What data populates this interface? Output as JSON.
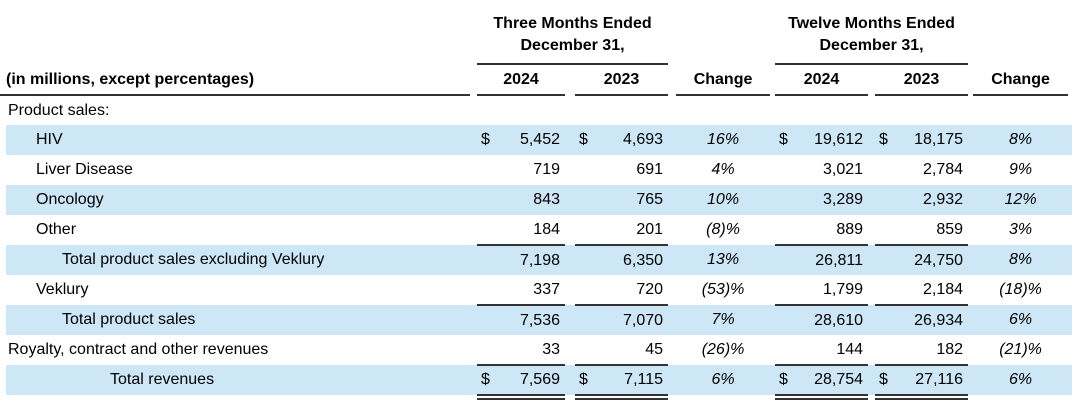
{
  "colors": {
    "row_highlight": "#cde7f7",
    "rule": "#333333",
    "text": "#000000",
    "background": "#ffffff"
  },
  "table": {
    "units_note": "(in millions, except percentages)",
    "currency_symbol": "$",
    "groups": [
      {
        "line1": "Three Months Ended",
        "line2": "December 31,"
      },
      {
        "line1": "Twelve Months Ended",
        "line2": "December 31,"
      }
    ],
    "col_headers": [
      "2024",
      "2023",
      "Change",
      "2024",
      "2023",
      "Change"
    ],
    "rows": [
      {
        "label": "Product sales:",
        "indent": 0,
        "shaded": false,
        "dollar": false,
        "values": null,
        "rule_below": false,
        "double_rule_below": false
      },
      {
        "label": "HIV",
        "indent": 1,
        "shaded": true,
        "dollar": true,
        "values": [
          "5,452",
          "4,693",
          "16%",
          "19,612",
          "18,175",
          "8%"
        ],
        "rule_below": false,
        "double_rule_below": false
      },
      {
        "label": "Liver Disease",
        "indent": 1,
        "shaded": false,
        "dollar": false,
        "values": [
          "719",
          "691",
          "4%",
          "3,021",
          "2,784",
          "9%"
        ],
        "rule_below": false,
        "double_rule_below": false
      },
      {
        "label": "Oncology",
        "indent": 1,
        "shaded": true,
        "dollar": false,
        "values": [
          "843",
          "765",
          "10%",
          "3,289",
          "2,932",
          "12%"
        ],
        "rule_below": false,
        "double_rule_below": false
      },
      {
        "label": "Other",
        "indent": 1,
        "shaded": false,
        "dollar": false,
        "values": [
          "184",
          "201",
          "(8)%",
          "889",
          "859",
          "3%"
        ],
        "rule_below": true,
        "double_rule_below": false
      },
      {
        "label": "Total product sales excluding Veklury",
        "indent": 2,
        "shaded": true,
        "dollar": false,
        "values": [
          "7,198",
          "6,350",
          "13%",
          "26,811",
          "24,750",
          "8%"
        ],
        "rule_below": false,
        "double_rule_below": false
      },
      {
        "label": "Veklury",
        "indent": 1,
        "shaded": false,
        "dollar": false,
        "values": [
          "337",
          "720",
          "(53)%",
          "1,799",
          "2,184",
          "(18)%"
        ],
        "rule_below": true,
        "double_rule_below": false
      },
      {
        "label": "Total product sales",
        "indent": 2,
        "shaded": true,
        "dollar": false,
        "values": [
          "7,536",
          "7,070",
          "7%",
          "28,610",
          "26,934",
          "6%"
        ],
        "rule_below": false,
        "double_rule_below": false
      },
      {
        "label": "Royalty, contract and other revenues",
        "indent": 0,
        "shaded": false,
        "dollar": false,
        "values": [
          "33",
          "45",
          "(26)%",
          "144",
          "182",
          "(21)%"
        ],
        "rule_below": true,
        "double_rule_below": false
      },
      {
        "label": "Total revenues",
        "indent": 3,
        "shaded": true,
        "dollar": true,
        "values": [
          "7,569",
          "7,115",
          "6%",
          "28,754",
          "27,116",
          "6%"
        ],
        "rule_below": false,
        "double_rule_below": true
      }
    ]
  }
}
